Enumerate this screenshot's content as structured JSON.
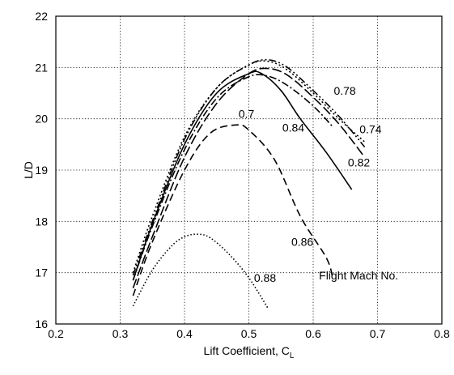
{
  "chart_data": {
    "type": "line",
    "title": "",
    "xlabel": "Lift Coefficient, C",
    "xlabel_subscript": "L",
    "ylabel": "L/D",
    "xlim": [
      0.2,
      0.8
    ],
    "ylim": [
      16,
      22
    ],
    "xticks": [
      "0.2",
      "0.3",
      "0.4",
      "0.5",
      "0.6",
      "0.7",
      "0.8"
    ],
    "yticks": [
      "16",
      "17",
      "18",
      "19",
      "20",
      "21",
      "22"
    ],
    "grid": true,
    "annotation": "Flight Mach No.",
    "series": [
      {
        "name": "0.7",
        "style": "dashdot",
        "x": [
          0.32,
          0.35,
          0.4,
          0.45,
          0.5,
          0.53,
          0.56,
          0.6,
          0.63
        ],
        "y": [
          16.85,
          17.9,
          19.4,
          20.4,
          20.82,
          20.83,
          20.65,
          20.25,
          19.85
        ]
      },
      {
        "name": "0.74",
        "style": "dotted",
        "x": [
          0.32,
          0.35,
          0.4,
          0.45,
          0.5,
          0.53,
          0.56,
          0.6,
          0.64,
          0.68
        ],
        "y": [
          17.0,
          18.1,
          19.65,
          20.6,
          21.05,
          21.12,
          20.95,
          20.5,
          20.0,
          19.55
        ]
      },
      {
        "name": "0.78",
        "style": "dashdotdot",
        "x": [
          0.32,
          0.35,
          0.4,
          0.45,
          0.5,
          0.53,
          0.56,
          0.6,
          0.64,
          0.68
        ],
        "y": [
          16.95,
          18.0,
          19.6,
          20.6,
          21.05,
          21.15,
          21.0,
          20.55,
          20.05,
          19.45
        ]
      },
      {
        "name": "0.82",
        "style": "longdash",
        "x": [
          0.32,
          0.35,
          0.4,
          0.45,
          0.5,
          0.53,
          0.56,
          0.6,
          0.64,
          0.68
        ],
        "y": [
          16.7,
          17.7,
          19.25,
          20.3,
          20.88,
          20.98,
          20.85,
          20.42,
          19.9,
          19.25
        ]
      },
      {
        "name": "0.84",
        "style": "solid",
        "x": [
          0.32,
          0.35,
          0.4,
          0.45,
          0.5,
          0.52,
          0.55,
          0.58,
          0.62,
          0.66
        ],
        "y": [
          16.85,
          17.95,
          19.5,
          20.5,
          20.88,
          20.88,
          20.55,
          20.0,
          19.35,
          18.62
        ]
      },
      {
        "name": "0.86",
        "style": "dashed",
        "x": [
          0.32,
          0.35,
          0.4,
          0.44,
          0.48,
          0.5,
          0.54,
          0.58,
          0.62,
          0.63
        ],
        "y": [
          16.55,
          17.6,
          19.0,
          19.72,
          19.88,
          19.78,
          19.2,
          18.1,
          17.3,
          16.92
        ]
      },
      {
        "name": "0.88",
        "style": "finedotted",
        "x": [
          0.32,
          0.35,
          0.38,
          0.4,
          0.42,
          0.44,
          0.47,
          0.5,
          0.53
        ],
        "y": [
          16.35,
          17.05,
          17.52,
          17.7,
          17.75,
          17.68,
          17.35,
          16.9,
          16.3
        ]
      }
    ]
  }
}
